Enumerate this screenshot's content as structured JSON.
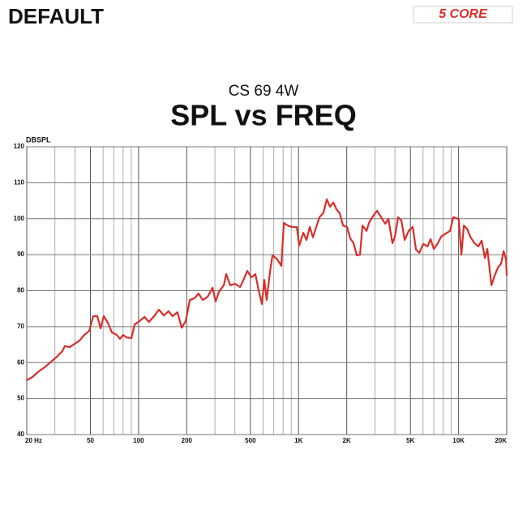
{
  "header": {
    "label": "DEFAULT",
    "logo": "5 CORE"
  },
  "chart_data": {
    "type": "line",
    "subtitle": "CS 69 4W",
    "title": "SPL vs FREQ",
    "y_label": "DBSPL",
    "log_x": true,
    "grid": true,
    "xlim": [
      20,
      20000
    ],
    "ylim": [
      40,
      120
    ],
    "xticks": [
      {
        "value": 20,
        "label": "20 Hz"
      },
      50,
      100,
      200,
      500,
      {
        "value": 1000,
        "label": "1K"
      },
      {
        "value": 2000,
        "label": "2K"
      },
      {
        "value": 5000,
        "label": "5K"
      },
      {
        "value": 10000,
        "label": "10K"
      },
      {
        "value": 20000,
        "label": "20K"
      }
    ],
    "x_minor_ticks": [
      30,
      40,
      60,
      70,
      80,
      90,
      300,
      400,
      600,
      700,
      800,
      900,
      3000,
      4000,
      6000,
      7000,
      8000,
      9000
    ],
    "yticks": [
      40,
      50,
      60,
      70,
      80,
      90,
      100,
      110,
      120
    ],
    "series": [
      {
        "name": "SPL",
        "color": "#d62f2a",
        "x": [
          20,
          21.7,
          23.8,
          25.9,
          28.1,
          30.8,
          33.4,
          34.6,
          37.1,
          39.8,
          42.7,
          45.8,
          49.1,
          52.1,
          55.2,
          57.9,
          60.6,
          64.2,
          68.1,
          73,
          76.5,
          80.2,
          84,
          90.2,
          94.4,
          101,
          109,
          116,
          125,
          134,
          144,
          154,
          163,
          175,
          186,
          197,
          209,
          224,
          237,
          252,
          270,
          290,
          303,
          318,
          341,
          353,
          374,
          401,
          431,
          451,
          478,
          507,
          537,
          563,
          590,
          611,
          632,
          663,
          687,
          736,
          780,
          809,
          857,
          908,
          975,
          1009,
          1070,
          1121,
          1175,
          1230,
          1289,
          1351,
          1432,
          1501,
          1573,
          1648,
          1726,
          1808,
          1896,
          2009,
          2106,
          2206,
          2312,
          2422,
          2508,
          2660,
          2754,
          2886,
          3094,
          3280,
          3476,
          3643,
          3862,
          4000,
          4192,
          4392,
          4602,
          4876,
          5172,
          5420,
          5676,
          6018,
          6390,
          6684,
          7004,
          7426,
          7780,
          8340,
          8846,
          9266,
          10020,
          10416,
          10788,
          11300,
          11840,
          12560,
          13300,
          13940,
          14610,
          15130,
          16040,
          16810,
          17620,
          18450,
          19110,
          19810,
          20000
        ],
        "values": [
          55.1,
          56.0,
          57.6,
          58.7,
          60.1,
          61.6,
          63.2,
          64.6,
          64.3,
          65.2,
          66.1,
          67.7,
          68.8,
          72.9,
          72.9,
          69.5,
          72.9,
          71.1,
          68.4,
          67.7,
          66.6,
          67.7,
          67.0,
          66.8,
          70.6,
          71.5,
          72.7,
          71.3,
          72.9,
          74.7,
          73.1,
          74.3,
          72.9,
          74.0,
          69.7,
          71.5,
          77.4,
          77.9,
          79.2,
          77.4,
          78.3,
          80.8,
          77.0,
          79.7,
          81.5,
          84.6,
          81.5,
          81.9,
          81.0,
          82.8,
          85.5,
          83.7,
          84.6,
          80.1,
          76.3,
          83.0,
          77.4,
          85.3,
          89.8,
          88.7,
          86.9,
          98.8,
          98.1,
          97.7,
          97.7,
          92.5,
          96.1,
          94.1,
          97.7,
          94.8,
          97.7,
          100.4,
          101.7,
          105.4,
          103.3,
          104.5,
          102.6,
          101.5,
          98.1,
          97.7,
          94.5,
          93.2,
          89.8,
          90.0,
          98.1,
          96.6,
          98.8,
          100.4,
          102.2,
          100.4,
          98.6,
          99.9,
          93.2,
          95.0,
          100.4,
          99.5,
          94.1,
          96.6,
          97.7,
          91.4,
          90.5,
          93.0,
          92.3,
          94.3,
          91.6,
          93.2,
          95.0,
          95.9,
          96.6,
          100.4,
          99.9,
          90.0,
          98.1,
          97.2,
          95.0,
          93.2,
          92.3,
          93.9,
          89.1,
          91.6,
          81.5,
          84.2,
          86.4,
          87.5,
          91.0,
          88.7,
          84.2
        ]
      }
    ]
  }
}
